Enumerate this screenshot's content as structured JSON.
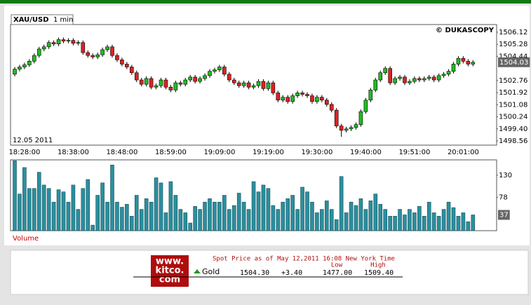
{
  "header": {
    "symbol": "XAU/USD",
    "interval": "1 min",
    "source": "© DUKASCOPY",
    "date": "12.05 2011"
  },
  "chart_data": [
    {
      "type": "candlestick",
      "categories": [
        null,
        null,
        "18:28:00",
        null,
        null,
        null,
        null,
        null,
        null,
        null,
        null,
        null,
        "18:38:00",
        null,
        null,
        null,
        null,
        null,
        null,
        null,
        null,
        null,
        "18:48:00",
        null,
        null,
        null,
        null,
        null,
        null,
        null,
        null,
        null,
        "18:59:00",
        null,
        null,
        null,
        null,
        null,
        null,
        null,
        null,
        null,
        "19:09:00",
        null,
        null,
        null,
        null,
        null,
        null,
        null,
        null,
        null,
        "19:19:00",
        null,
        null,
        null,
        null,
        null,
        null,
        null,
        null,
        null,
        "19:30:00",
        null,
        null,
        null,
        null,
        null,
        null,
        null,
        null,
        null,
        "19:40:00",
        null,
        null,
        null,
        null,
        null,
        null,
        null,
        null,
        null,
        "19:51:00",
        null,
        null,
        null,
        null,
        null,
        null,
        null,
        null,
        null,
        "20:01:00",
        null,
        null
      ],
      "open": [
        1503.2,
        1503.55,
        1503.7,
        1503.85,
        1504.1,
        1504.5,
        1504.95,
        1505.1,
        1505.4,
        1505.3,
        1505.6,
        1505.5,
        1505.55,
        1505.35,
        1505.4,
        1504.7,
        1504.5,
        1504.4,
        1504.55,
        1504.9,
        1505.1,
        1504.5,
        1504.2,
        1503.9,
        1503.7,
        1503.3,
        1502.8,
        1502.5,
        1502.9,
        1502.3,
        1502.4,
        1502.8,
        1502.3,
        1502.1,
        1502.6,
        1502.5,
        1502.8,
        1503.0,
        1502.7,
        1502.9,
        1503.1,
        1503.4,
        1503.5,
        1503.7,
        1503.2,
        1502.8,
        1502.6,
        1502.4,
        1502.6,
        1502.3,
        1502.4,
        1502.7,
        1502.2,
        1502.6,
        1501.9,
        1501.4,
        1501.6,
        1501.3,
        1501.7,
        1501.9,
        1501.8,
        1501.7,
        1501.3,
        1501.6,
        1501.4,
        1501.1,
        1500.7,
        1499.6,
        1499.3,
        1499.4,
        1499.5,
        1499.7,
        1500.6,
        1501.4,
        1502.1,
        1502.8,
        1503.3,
        1503.6,
        1502.6,
        1502.9,
        1503.0,
        1502.6,
        1502.7,
        1502.9,
        1502.8,
        1502.9,
        1503.0,
        1502.8,
        1503.1,
        1503.2,
        1503.4,
        1503.9,
        1504.3,
        1504.1,
        1503.9
      ],
      "high": [
        1503.7,
        1503.85,
        1504.0,
        1504.25,
        1504.65,
        1505.1,
        1505.25,
        1505.55,
        1505.55,
        1505.75,
        1505.75,
        1505.7,
        1505.7,
        1505.55,
        1505.55,
        1504.85,
        1504.65,
        1504.7,
        1505.05,
        1505.25,
        1505.25,
        1504.65,
        1504.35,
        1504.05,
        1503.85,
        1503.45,
        1502.95,
        1503.05,
        1503.05,
        1502.55,
        1502.95,
        1502.95,
        1502.45,
        1502.75,
        1502.75,
        1502.95,
        1503.15,
        1503.15,
        1503.05,
        1503.25,
        1503.55,
        1503.65,
        1503.85,
        1503.85,
        1503.35,
        1502.95,
        1502.75,
        1502.75,
        1502.75,
        1502.55,
        1502.85,
        1502.85,
        1502.75,
        1502.75,
        1502.05,
        1501.75,
        1501.75,
        1501.85,
        1502.05,
        1502.05,
        1501.95,
        1501.85,
        1501.75,
        1501.75,
        1501.55,
        1501.25,
        1500.85,
        1499.75,
        1499.55,
        1499.65,
        1499.85,
        1500.75,
        1501.55,
        1502.25,
        1502.95,
        1503.45,
        1503.75,
        1503.75,
        1503.05,
        1503.15,
        1503.15,
        1502.85,
        1503.05,
        1503.05,
        1503.05,
        1503.15,
        1503.15,
        1503.25,
        1503.35,
        1503.55,
        1504.05,
        1504.45,
        1504.45,
        1504.25,
        1504.18
      ],
      "low": [
        1503.05,
        1503.4,
        1503.55,
        1503.7,
        1503.95,
        1504.35,
        1504.8,
        1504.95,
        1505.15,
        1505.15,
        1505.35,
        1505.35,
        1505.2,
        1505.2,
        1504.55,
        1504.35,
        1504.25,
        1504.25,
        1504.4,
        1504.75,
        1504.35,
        1504.05,
        1503.75,
        1503.55,
        1503.15,
        1502.65,
        1502.35,
        1502.35,
        1502.15,
        1502.15,
        1502.25,
        1502.15,
        1501.95,
        1501.95,
        1502.35,
        1502.35,
        1502.65,
        1502.55,
        1502.55,
        1502.75,
        1502.95,
        1503.25,
        1503.35,
        1503.05,
        1502.65,
        1502.45,
        1502.25,
        1502.25,
        1502.15,
        1502.15,
        1502.25,
        1502.05,
        1502.05,
        1501.75,
        1501.25,
        1501.25,
        1501.15,
        1501.15,
        1501.55,
        1501.65,
        1501.55,
        1501.15,
        1501.15,
        1501.25,
        1500.95,
        1500.55,
        1499.45,
        1498.85,
        1499.15,
        1499.25,
        1499.35,
        1499.55,
        1500.45,
        1501.25,
        1501.95,
        1502.65,
        1503.15,
        1502.45,
        1502.45,
        1502.75,
        1502.45,
        1502.45,
        1502.55,
        1502.65,
        1502.65,
        1502.75,
        1502.65,
        1502.65,
        1502.95,
        1503.05,
        1503.25,
        1503.75,
        1503.95,
        1503.75,
        1503.75
      ],
      "close": [
        1503.55,
        1503.7,
        1503.85,
        1504.1,
        1504.5,
        1504.95,
        1505.1,
        1505.4,
        1505.3,
        1505.6,
        1505.5,
        1505.55,
        1505.35,
        1505.4,
        1504.7,
        1504.5,
        1504.4,
        1504.55,
        1504.9,
        1505.1,
        1504.5,
        1504.2,
        1503.9,
        1503.7,
        1503.3,
        1502.8,
        1502.5,
        1502.9,
        1502.3,
        1502.4,
        1502.8,
        1502.3,
        1502.1,
        1502.6,
        1502.5,
        1502.8,
        1503.0,
        1502.7,
        1502.9,
        1503.1,
        1503.4,
        1503.5,
        1503.7,
        1503.2,
        1502.8,
        1502.6,
        1502.4,
        1502.6,
        1502.3,
        1502.4,
        1502.7,
        1502.2,
        1502.6,
        1501.9,
        1501.4,
        1501.6,
        1501.3,
        1501.7,
        1501.9,
        1501.8,
        1501.7,
        1501.3,
        1501.6,
        1501.4,
        1501.1,
        1500.7,
        1499.6,
        1499.3,
        1499.4,
        1499.5,
        1499.7,
        1500.6,
        1501.4,
        1502.1,
        1502.8,
        1503.3,
        1503.6,
        1502.6,
        1502.9,
        1503.0,
        1502.6,
        1502.7,
        1502.9,
        1502.8,
        1502.9,
        1503.0,
        1502.8,
        1503.1,
        1503.2,
        1503.4,
        1503.9,
        1504.3,
        1504.1,
        1503.9,
        1504.03
      ],
      "up_color": "#22bb22",
      "down_color": "#dd2222",
      "ylim": [
        1498.27,
        1506.65
      ],
      "yticks": [
        1506.12,
        1505.28,
        1504.44,
        1502.76,
        1501.92,
        1501.08,
        1500.24,
        {
          "value": 1499.4,
          "label": "1499.40"
        },
        1498.56
      ],
      "current_price": 1504.03
    },
    {
      "type": "bar",
      "title": "Volume",
      "color": "#2a8f9f",
      "values": [
        164,
        86,
        148,
        99,
        99,
        137,
        107,
        99,
        67,
        96,
        91,
        67,
        107,
        50,
        99,
        120,
        13,
        83,
        112,
        67,
        154,
        67,
        55,
        62,
        34,
        83,
        50,
        75,
        67,
        124,
        112,
        42,
        115,
        83,
        50,
        42,
        18,
        57,
        50,
        67,
        75,
        67,
        67,
        83,
        50,
        59,
        88,
        67,
        50,
        115,
        91,
        107,
        99,
        59,
        50,
        67,
        75,
        83,
        50,
        102,
        91,
        67,
        42,
        50,
        70,
        50,
        26,
        127,
        42,
        67,
        59,
        75,
        50,
        70,
        86,
        62,
        50,
        34,
        34,
        50,
        37,
        50,
        42,
        57,
        34,
        67,
        42,
        34,
        50,
        67,
        54,
        34,
        42,
        21,
        37
      ],
      "ylim": [
        0,
        166
      ],
      "yticks": [
        130,
        78
      ],
      "current_value": 37
    }
  ],
  "quote": {
    "logo": [
      "www.",
      "kitco.",
      "com"
    ],
    "spot_line": "Spot Price as of May 12,2011 16:08 New York Time",
    "low_header": "Low",
    "high_header": "High",
    "metal": "Gold",
    "bid": "1504.30",
    "change": "+3.40",
    "low": "1477.00",
    "high": "1509.40"
  }
}
